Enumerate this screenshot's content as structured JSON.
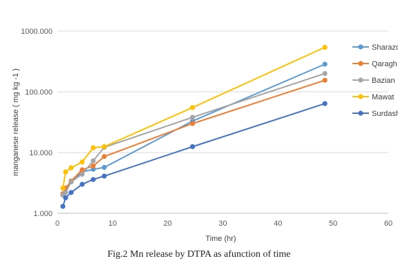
{
  "caption": "Fig.2 Mn release by DTPA as afunction of time",
  "chart_data": {
    "type": "line",
    "title": "",
    "xlabel": "Time (hr)",
    "ylabel": "manganese release ( mg kg -1 )",
    "xlim": [
      0,
      60
    ],
    "xticks": [
      0,
      10,
      20,
      30,
      40,
      50,
      60
    ],
    "xtick_labels": [
      "0",
      "10",
      "20",
      "30",
      "40",
      "50",
      "60"
    ],
    "yscale": "log",
    "ylim": [
      1,
      1000
    ],
    "yticks": [
      1,
      10,
      100,
      1000
    ],
    "ytick_labels": [
      "1.000",
      "10.000",
      "100.000",
      "1000.000"
    ],
    "grid": "horizontal",
    "legend_position": "right",
    "series": [
      {
        "name": "Sharazor",
        "color": "#5b9bd5",
        "x": [
          1,
          1.5,
          2.5,
          4.5,
          6.5,
          8.5,
          24.5,
          48.5
        ],
        "y": [
          2.0,
          2.5,
          3.3,
          4.8,
          5.3,
          5.7,
          33,
          285
        ]
      },
      {
        "name": "Qaragh",
        "color": "#ed7d31",
        "x": [
          1,
          1.5,
          2.5,
          4.5,
          6.5,
          8.5,
          24.5,
          48.5
        ],
        "y": [
          2.1,
          2.6,
          3.4,
          5.2,
          6.0,
          8.6,
          30,
          155
        ]
      },
      {
        "name": "Bazian",
        "color": "#a5a5a5",
        "x": [
          1,
          1.5,
          2.5,
          4.5,
          6.5,
          8.5,
          24.5,
          48.5
        ],
        "y": [
          2.0,
          2.2,
          3.3,
          4.4,
          7.3,
          12.2,
          38,
          200
        ]
      },
      {
        "name": "Mawat",
        "color": "#ffc000",
        "x": [
          1,
          1.5,
          2.5,
          4.5,
          6.5,
          8.5,
          24.5,
          48.5
        ],
        "y": [
          2.6,
          4.8,
          5.6,
          7.0,
          12.0,
          12.5,
          55,
          540
        ]
      },
      {
        "name": "Surdash",
        "color": "#4472c4",
        "x": [
          1,
          1.5,
          2.5,
          4.5,
          6.5,
          8.5,
          24.5,
          48.5
        ],
        "y": [
          1.3,
          1.8,
          2.2,
          3.0,
          3.6,
          4.1,
          12.5,
          64
        ]
      }
    ]
  }
}
